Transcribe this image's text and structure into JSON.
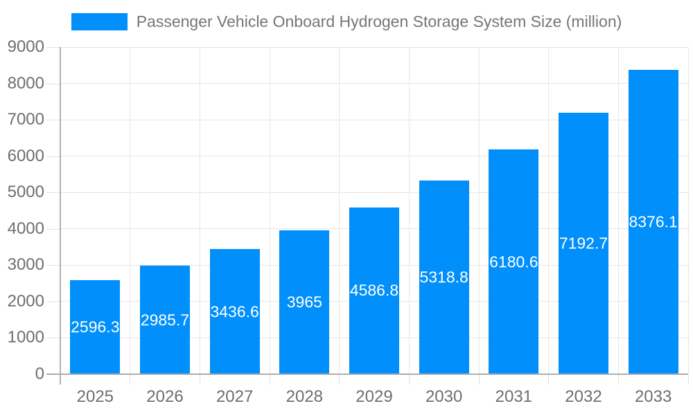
{
  "chart_data": {
    "type": "bar",
    "series_name": "Passenger Vehicle Onboard Hydrogen Storage System Size (million)",
    "categories": [
      "2025",
      "2026",
      "2027",
      "2028",
      "2029",
      "2030",
      "2031",
      "2032",
      "2033"
    ],
    "values": [
      2596.3,
      2985.7,
      3436.6,
      3965,
      4586.8,
      5318.8,
      6180.6,
      7192.7,
      8376.1
    ],
    "title": "",
    "xlabel": "",
    "ylabel": "",
    "ylim": [
      0,
      9000
    ],
    "y_ticks": [
      0,
      1000,
      2000,
      3000,
      4000,
      5000,
      6000,
      7000,
      8000,
      9000
    ],
    "grid": true,
    "legend_position": "top-center",
    "bar_color": "#008FFB",
    "value_label_color": "#ffffff",
    "axis_label_color": "#6e6e6e",
    "gridline_color": "#e6e6e6",
    "axis_line_color": "#b0b0b0",
    "background_color": "#ffffff"
  }
}
